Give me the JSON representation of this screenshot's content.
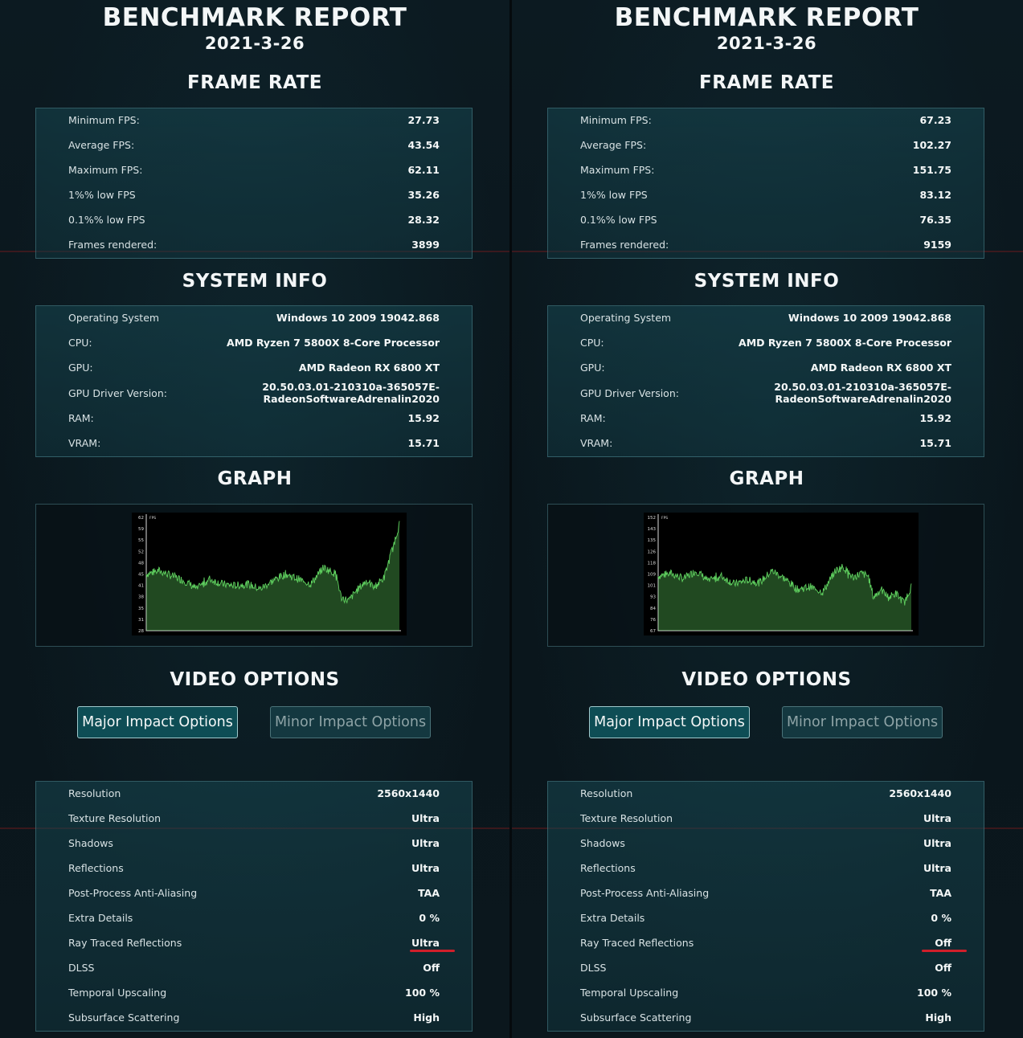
{
  "reports": [
    {
      "title": "BENCHMARK REPORT",
      "date": "2021-3-26",
      "frame_rate_heading": "FRAME RATE",
      "frame_rate": [
        {
          "label": "Minimum FPS:",
          "value": "27.73"
        },
        {
          "label": "Average FPS:",
          "value": "43.54"
        },
        {
          "label": "Maximum FPS:",
          "value": "62.11"
        },
        {
          "label": "1%% low FPS",
          "value": "35.26"
        },
        {
          "label": "0.1%% low FPS",
          "value": "28.32"
        },
        {
          "label": "Frames rendered:",
          "value": "3899"
        }
      ],
      "system_info_heading": "SYSTEM INFO",
      "system_info": [
        {
          "label": "Operating System",
          "value": "Windows 10 2009 19042.868"
        },
        {
          "label": "CPU:",
          "value": "AMD Ryzen 7 5800X 8-Core Processor"
        },
        {
          "label": "GPU:",
          "value": "AMD Radeon RX 6800 XT"
        },
        {
          "label": "GPU Driver Version:",
          "value": "20.50.03.01-210310a-365057E-\nRadeonSoftwareAdrenalin2020"
        },
        {
          "label": "RAM:",
          "value": "15.92"
        },
        {
          "label": "VRAM:",
          "value": "15.71"
        }
      ],
      "graph_heading": "GRAPH",
      "video_options_heading": "VIDEO OPTIONS",
      "buttons": {
        "major": "Major Impact Options",
        "minor": "Minor Impact Options"
      },
      "video_options": [
        {
          "label": "Resolution",
          "value": "2560x1440"
        },
        {
          "label": "Texture Resolution",
          "value": "Ultra"
        },
        {
          "label": "Shadows",
          "value": "Ultra"
        },
        {
          "label": "Reflections",
          "value": "Ultra"
        },
        {
          "label": "Post-Process Anti-Aliasing",
          "value": "TAA"
        },
        {
          "label": "Extra Details",
          "value": "0 %"
        },
        {
          "label": "Ray Traced Reflections",
          "value": "Ultra"
        },
        {
          "label": "DLSS",
          "value": "Off"
        },
        {
          "label": "Temporal Upscaling",
          "value": "100 %"
        },
        {
          "label": "Subsurface Scattering",
          "value": "High"
        }
      ],
      "chart_data": {
        "type": "area",
        "ylabel": "FPS",
        "y_ticks": [
          "62",
          "59",
          "55",
          "52",
          "48",
          "45",
          "41",
          "38",
          "35",
          "31",
          "28"
        ],
        "ylim": [
          28,
          62
        ],
        "x_range": [
          0,
          1
        ],
        "series": [
          {
            "points": [
              [
                0,
                45
              ],
              [
                0.05,
                46
              ],
              [
                0.1,
                44.5
              ],
              [
                0.15,
                43
              ],
              [
                0.2,
                40.5
              ],
              [
                0.25,
                43.5
              ],
              [
                0.3,
                42
              ],
              [
                0.35,
                41.5
              ],
              [
                0.4,
                42
              ],
              [
                0.45,
                40.5
              ],
              [
                0.5,
                43
              ],
              [
                0.55,
                45
              ],
              [
                0.6,
                43.5
              ],
              [
                0.65,
                42
              ],
              [
                0.7,
                47
              ],
              [
                0.75,
                45
              ],
              [
                0.77,
                38
              ],
              [
                0.8,
                37
              ],
              [
                0.83,
                40
              ],
              [
                0.87,
                43
              ],
              [
                0.9,
                41
              ],
              [
                0.94,
                44
              ],
              [
                0.97,
                52
              ],
              [
                1.0,
                60
              ]
            ]
          }
        ],
        "color": "#5fd05f"
      }
    },
    {
      "title": "BENCHMARK REPORT",
      "date": "2021-3-26",
      "frame_rate_heading": "FRAME RATE",
      "frame_rate": [
        {
          "label": "Minimum FPS:",
          "value": "67.23"
        },
        {
          "label": "Average FPS:",
          "value": "102.27"
        },
        {
          "label": "Maximum FPS:",
          "value": "151.75"
        },
        {
          "label": "1%% low FPS",
          "value": "83.12"
        },
        {
          "label": "0.1%% low FPS",
          "value": "76.35"
        },
        {
          "label": "Frames rendered:",
          "value": "9159"
        }
      ],
      "system_info_heading": "SYSTEM INFO",
      "system_info": [
        {
          "label": "Operating System",
          "value": "Windows 10 2009 19042.868"
        },
        {
          "label": "CPU:",
          "value": "AMD Ryzen 7 5800X 8-Core Processor"
        },
        {
          "label": "GPU:",
          "value": "AMD Radeon RX 6800 XT"
        },
        {
          "label": "GPU Driver Version:",
          "value": "20.50.03.01-210310a-365057E-\nRadeonSoftwareAdrenalin2020"
        },
        {
          "label": "RAM:",
          "value": "15.92"
        },
        {
          "label": "VRAM:",
          "value": "15.71"
        }
      ],
      "graph_heading": "GRAPH",
      "video_options_heading": "VIDEO OPTIONS",
      "buttons": {
        "major": "Major Impact Options",
        "minor": "Minor Impact Options"
      },
      "video_options": [
        {
          "label": "Resolution",
          "value": "2560x1440"
        },
        {
          "label": "Texture Resolution",
          "value": "Ultra"
        },
        {
          "label": "Shadows",
          "value": "Ultra"
        },
        {
          "label": "Reflections",
          "value": "Ultra"
        },
        {
          "label": "Post-Process Anti-Aliasing",
          "value": "TAA"
        },
        {
          "label": "Extra Details",
          "value": "0 %"
        },
        {
          "label": "Ray Traced Reflections",
          "value": "Off"
        },
        {
          "label": "DLSS",
          "value": "Off"
        },
        {
          "label": "Temporal Upscaling",
          "value": "100 %"
        },
        {
          "label": "Subsurface Scattering",
          "value": "High"
        }
      ],
      "chart_data": {
        "type": "area",
        "ylabel": "FPS",
        "y_ticks": [
          "152",
          "143",
          "135",
          "126",
          "118",
          "109",
          "101",
          "93",
          "84",
          "76",
          "67"
        ],
        "ylim": [
          67,
          152
        ],
        "x_range": [
          0,
          1
        ],
        "series": [
          {
            "points": [
              [
                0,
                108
              ],
              [
                0.05,
                110
              ],
              [
                0.1,
                106
              ],
              [
                0.15,
                112
              ],
              [
                0.2,
                104
              ],
              [
                0.25,
                108
              ],
              [
                0.3,
                102
              ],
              [
                0.35,
                105
              ],
              [
                0.4,
                103
              ],
              [
                0.45,
                112
              ],
              [
                0.5,
                106
              ],
              [
                0.55,
                98
              ],
              [
                0.6,
                100
              ],
              [
                0.65,
                96
              ],
              [
                0.7,
                112
              ],
              [
                0.73,
                115
              ],
              [
                0.77,
                107
              ],
              [
                0.8,
                110
              ],
              [
                0.83,
                108
              ],
              [
                0.85,
                92
              ],
              [
                0.88,
                98
              ],
              [
                0.91,
                92
              ],
              [
                0.94,
                95
              ],
              [
                0.97,
                88
              ],
              [
                1.0,
                100
              ]
            ]
          }
        ],
        "color": "#5fd05f"
      }
    }
  ]
}
